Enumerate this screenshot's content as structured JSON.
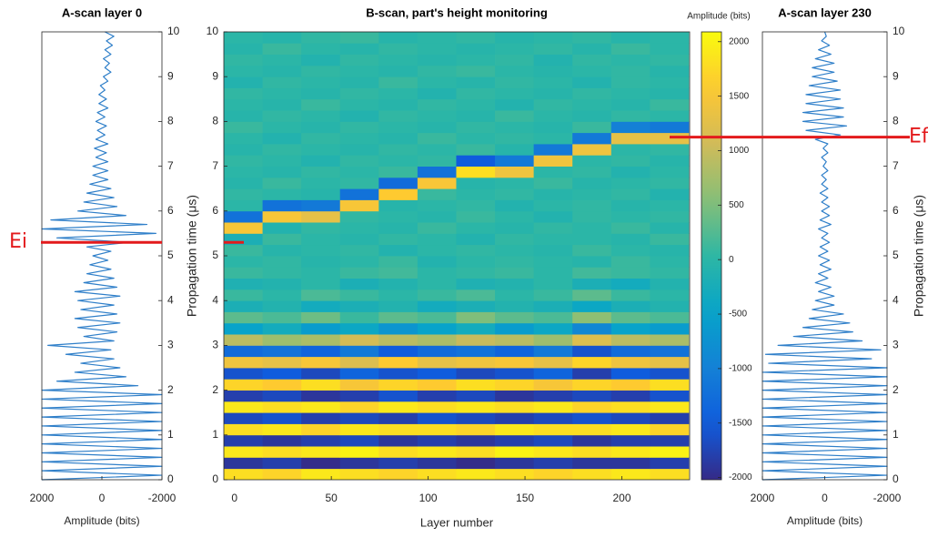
{
  "chart_data": [
    {
      "type": "line",
      "title": "A-scan layer 0",
      "xlabel": "Amplitude (bits)",
      "color": "#2f7fc9",
      "xlim": [
        2000,
        -2000
      ],
      "xticks": [
        2000,
        0,
        -2000
      ],
      "ylim": [
        0,
        10
      ],
      "yticks": [
        0,
        1,
        2,
        3,
        4,
        5,
        6,
        7,
        8,
        9,
        10
      ],
      "y": [
        0,
        0.1,
        0.2,
        0.3,
        0.4,
        0.5,
        0.6,
        0.7,
        0.8,
        0.9,
        1,
        1.1,
        1.2,
        1.3,
        1.4,
        1.5,
        1.6,
        1.7,
        1.8,
        1.9,
        2,
        2.1,
        2.2,
        2.3,
        2.4,
        2.5,
        2.6,
        2.7,
        2.8,
        2.9,
        3,
        3.1,
        3.2,
        3.3,
        3.4,
        3.5,
        3.6,
        3.7,
        3.8,
        3.9,
        4,
        4.1,
        4.2,
        4.3,
        4.4,
        4.5,
        4.6,
        4.7,
        4.8,
        4.9,
        5,
        5.1,
        5.2,
        5.3,
        5.4,
        5.5,
        5.6,
        5.7,
        5.8,
        5.9,
        6,
        6.1,
        6.2,
        6.3,
        6.4,
        6.5,
        6.6,
        6.7,
        6.8,
        6.9,
        7,
        7.1,
        7.2,
        7.3,
        7.4,
        7.5,
        7.6,
        7.7,
        7.8,
        7.9,
        8,
        8.1,
        8.2,
        8.3,
        8.4,
        8.5,
        8.6,
        8.7,
        8.8,
        8.9,
        9,
        9.1,
        9.2,
        9.3,
        9.4,
        9.5,
        9.6,
        9.7,
        9.8,
        9.9,
        10
      ],
      "values": [
        2000,
        -2000,
        2000,
        -2000,
        2000,
        -2000,
        2000,
        -2000,
        2000,
        -2000,
        2000,
        -2000,
        2000,
        -2000,
        2000,
        -2000,
        2000,
        -2000,
        2000,
        -2000,
        2000,
        -1200,
        1500,
        -800,
        900,
        -600,
        700,
        -400,
        1200,
        -300,
        1800,
        -400,
        600,
        -500,
        800,
        -600,
        900,
        -500,
        700,
        -400,
        800,
        -600,
        900,
        -500,
        600,
        -400,
        500,
        -300,
        400,
        -200,
        300,
        -300,
        500,
        -900,
        1500,
        -1800,
        2000,
        -1500,
        1700,
        -800,
        800,
        -500,
        600,
        -400,
        500,
        -300,
        400,
        -200,
        300,
        -200,
        300,
        -200,
        200,
        -150,
        250,
        -200,
        200,
        -100,
        150,
        -150,
        200,
        -100,
        150,
        -200,
        100,
        -150,
        100,
        -100,
        50,
        -200,
        -50,
        -300,
        -100,
        -250,
        -50,
        -300,
        -100,
        -350,
        -150,
        -400,
        -100
      ],
      "annotation": {
        "text": "Ei",
        "y": 5.3,
        "side": "left",
        "color": "#e31a1c"
      }
    },
    {
      "type": "heatmap",
      "title": "B-scan, part's height monitoring",
      "xlabel": "Layer number",
      "ylabel": "Propagation time (μs)",
      "xlim": [
        -5.5,
        235
      ],
      "xticks": [
        0,
        50,
        100,
        150,
        200
      ],
      "ylim": [
        0,
        10
      ],
      "yticks": [
        0,
        1,
        2,
        3,
        4,
        5,
        6,
        7,
        8,
        9,
        10
      ],
      "colormap": "parula",
      "clabel": "Amplitude (bits)",
      "clim": [
        -2020,
        2090
      ],
      "cticks": [
        -2000,
        -1500,
        -1000,
        -500,
        0,
        500,
        1000,
        1500,
        2000
      ],
      "markers": [
        {
          "y": 5.3,
          "side": "left",
          "color": "#e31a1c"
        },
        {
          "y": 7.65,
          "side": "right",
          "color": "#e31a1c"
        }
      ],
      "x": [
        4.5,
        24.5,
        44.5,
        64.5,
        84.5,
        104.5,
        124.5,
        144.5,
        164.5,
        184.5,
        204.5,
        224.5
      ],
      "y": [
        0.125,
        0.375,
        0.625,
        0.875,
        1.125,
        1.375,
        1.625,
        1.875,
        2.125,
        2.375,
        2.625,
        2.875,
        3.125,
        3.375,
        3.625,
        3.875,
        4.125,
        4.375,
        4.625,
        4.875,
        5.125,
        5.375,
        5.625,
        5.875,
        6.125,
        6.375,
        6.625,
        6.875,
        7.125,
        7.375,
        7.625,
        7.875,
        8.125,
        8.375,
        8.625,
        8.875,
        9.125,
        9.375,
        9.625,
        9.875
      ],
      "values": [
        [
          1800,
          1700,
          1900,
          1800,
          1700,
          1800,
          1900,
          1800,
          1700,
          1800,
          1900,
          1800
        ],
        [
          -1900,
          -1800,
          -2000,
          -1900,
          -1800,
          -1900,
          -2000,
          -1900,
          -1800,
          -1900,
          -1900,
          -1800
        ],
        [
          1900,
          1800,
          1900,
          2000,
          1800,
          1900,
          1800,
          2000,
          1900,
          1800,
          1900,
          2000
        ],
        [
          -1800,
          -1900,
          -1800,
          -1700,
          -1900,
          -1800,
          -1900,
          -1800,
          -1700,
          -1900,
          -1800,
          -1800
        ],
        [
          1800,
          1900,
          1700,
          1900,
          1800,
          1800,
          1700,
          1900,
          1800,
          1800,
          1900,
          1700
        ],
        [
          -1700,
          -1600,
          -1800,
          -1700,
          -1800,
          -1600,
          -1700,
          -1800,
          -1700,
          -1600,
          -1700,
          -1800
        ],
        [
          1900,
          1800,
          1900,
          1700,
          1900,
          1800,
          1900,
          1800,
          1900,
          1700,
          1800,
          1900
        ],
        [
          -1800,
          -1700,
          -1900,
          -1800,
          -1600,
          -1800,
          -1700,
          -1900,
          -1800,
          -1700,
          -1800,
          -1600
        ],
        [
          1700,
          1600,
          1800,
          1500,
          1700,
          1600,
          1800,
          1700,
          1500,
          1700,
          1600,
          1800
        ],
        [
          -1600,
          -1500,
          -1700,
          -1400,
          -1600,
          -1500,
          -1700,
          -1600,
          -1400,
          -1800,
          -1500,
          -1600
        ],
        [
          1400,
          1300,
          1500,
          1200,
          1600,
          1300,
          1400,
          1500,
          1300,
          1700,
          1400,
          1300
        ],
        [
          -1300,
          -1200,
          -1400,
          -1100,
          -1500,
          -1300,
          -1200,
          -1400,
          -1100,
          -1600,
          -1300,
          -1200
        ],
        [
          900,
          700,
          800,
          1100,
          900,
          800,
          1000,
          900,
          700,
          1200,
          900,
          800
        ],
        [
          -500,
          -300,
          -600,
          -400,
          -700,
          -500,
          -300,
          -600,
          -400,
          -900,
          -500,
          -600
        ],
        [
          300,
          200,
          400,
          100,
          300,
          200,
          500,
          300,
          200,
          600,
          300,
          200
        ],
        [
          -200,
          -100,
          -300,
          -200,
          -100,
          -300,
          -200,
          -100,
          -200,
          -400,
          -200,
          -100
        ],
        [
          100,
          0,
          200,
          100,
          0,
          100,
          200,
          0,
          100,
          300,
          100,
          0
        ],
        [
          -150,
          -100,
          0,
          -200,
          -100,
          0,
          -150,
          -100,
          0,
          -200,
          -300,
          -100
        ],
        [
          100,
          50,
          0,
          100,
          150,
          0,
          50,
          100,
          0,
          150,
          100,
          50
        ],
        [
          0,
          50,
          -50,
          0,
          100,
          -100,
          0,
          50,
          0,
          -50,
          100,
          0
        ],
        [
          100,
          -50,
          0,
          50,
          -100,
          0,
          50,
          0,
          -50,
          100,
          0,
          -50
        ],
        [
          -200,
          100,
          0,
          -50,
          50,
          0,
          -100,
          50,
          0,
          0,
          -50,
          100
        ],
        [
          1500,
          -100,
          50,
          0,
          -50,
          100,
          0,
          -50,
          50,
          0,
          100,
          -50
        ],
        [
          -1200,
          1500,
          1300,
          50,
          0,
          -50,
          100,
          0,
          -100,
          50,
          0,
          50
        ],
        [
          0,
          -1200,
          -1100,
          1500,
          -50,
          0,
          50,
          -100,
          0,
          50,
          -50,
          0
        ],
        [
          50,
          0,
          -50,
          -1200,
          1600,
          100,
          0,
          50,
          -50,
          0,
          50,
          -100
        ],
        [
          -50,
          100,
          0,
          50,
          -1300,
          1500,
          -50,
          0,
          100,
          -50,
          0,
          50
        ],
        [
          0,
          -50,
          50,
          0,
          100,
          -1200,
          1800,
          1400,
          0,
          50,
          -100,
          0
        ],
        [
          50,
          0,
          -100,
          50,
          0,
          50,
          -1500,
          -1100,
          1400,
          0,
          50,
          -50
        ],
        [
          -50,
          50,
          0,
          -50,
          50,
          0,
          100,
          -50,
          -1100,
          1400,
          0,
          50
        ],
        [
          0,
          -100,
          50,
          0,
          -50,
          100,
          0,
          50,
          0,
          -1100,
          1300,
          1300
        ],
        [
          100,
          0,
          -50,
          50,
          0,
          -50,
          50,
          0,
          -50,
          100,
          -1000,
          -1100
        ],
        [
          -50,
          50,
          0,
          -100,
          50,
          0,
          -50,
          100,
          0,
          -50,
          50,
          0
        ],
        [
          0,
          -50,
          100,
          0,
          -50,
          50,
          0,
          -100,
          50,
          0,
          -50,
          100
        ],
        [
          50,
          0,
          -50,
          50,
          0,
          -100,
          50,
          0,
          -50,
          50,
          0,
          -50
        ],
        [
          -100,
          50,
          0,
          -50,
          100,
          0,
          -50,
          50,
          0,
          -100,
          50,
          0
        ],
        [
          0,
          -50,
          50,
          0,
          -50,
          50,
          100,
          0,
          -50,
          0,
          50,
          -50
        ],
        [
          50,
          0,
          -100,
          50,
          0,
          -50,
          0,
          50,
          -100,
          50,
          0,
          50
        ],
        [
          -50,
          100,
          0,
          -50,
          50,
          0,
          -50,
          0,
          50,
          -50,
          100,
          0
        ],
        [
          0,
          -50,
          50,
          100,
          -50,
          0,
          50,
          -50,
          0,
          50,
          -50,
          0
        ]
      ]
    },
    {
      "type": "line",
      "title": "A-scan layer 230",
      "xlabel": "Amplitude (bits)",
      "ylabel": "Propagation time (μs)",
      "color": "#2f7fc9",
      "xlim": [
        2000,
        -2000
      ],
      "xticks": [
        2000,
        0,
        -2000
      ],
      "ylim": [
        0,
        10
      ],
      "yticks": [
        0,
        1,
        2,
        3,
        4,
        5,
        6,
        7,
        8,
        9,
        10
      ],
      "y": [
        0,
        0.1,
        0.2,
        0.3,
        0.4,
        0.5,
        0.6,
        0.7,
        0.8,
        0.9,
        1,
        1.1,
        1.2,
        1.3,
        1.4,
        1.5,
        1.6,
        1.7,
        1.8,
        1.9,
        2,
        2.1,
        2.2,
        2.3,
        2.4,
        2.5,
        2.6,
        2.7,
        2.8,
        2.9,
        3,
        3.1,
        3.2,
        3.3,
        3.4,
        3.5,
        3.6,
        3.7,
        3.8,
        3.9,
        4,
        4.1,
        4.2,
        4.3,
        4.4,
        4.5,
        4.6,
        4.7,
        4.8,
        4.9,
        5,
        5.1,
        5.2,
        5.3,
        5.4,
        5.5,
        5.6,
        5.7,
        5.8,
        5.9,
        6,
        6.1,
        6.2,
        6.3,
        6.4,
        6.5,
        6.6,
        6.7,
        6.8,
        6.9,
        7,
        7.1,
        7.2,
        7.3,
        7.4,
        7.5,
        7.6,
        7.7,
        7.8,
        7.9,
        8,
        8.1,
        8.2,
        8.3,
        8.4,
        8.5,
        8.6,
        8.7,
        8.8,
        8.9,
        9,
        9.1,
        9.2,
        9.3,
        9.4,
        9.5,
        9.6,
        9.7,
        9.8,
        9.9,
        10
      ],
      "values": [
        2000,
        -2000,
        2000,
        -2000,
        2000,
        -2000,
        2000,
        -2000,
        2000,
        -2000,
        2000,
        -2000,
        2000,
        -2000,
        2000,
        -2000,
        2000,
        -2000,
        2000,
        -2000,
        2000,
        -2000,
        2000,
        -2000,
        2000,
        -2000,
        1800,
        -1500,
        1900,
        -1800,
        1500,
        -1200,
        1000,
        -900,
        700,
        -800,
        500,
        -600,
        400,
        -300,
        300,
        -300,
        200,
        -200,
        300,
        -100,
        200,
        -200,
        150,
        -150,
        200,
        -100,
        150,
        -150,
        100,
        -100,
        200,
        -200,
        150,
        -150,
        100,
        -150,
        100,
        -100,
        150,
        -100,
        100,
        -50,
        100,
        -100,
        50,
        -50,
        100,
        -100,
        50,
        -100,
        300,
        -500,
        600,
        -700,
        700,
        -600,
        700,
        -600,
        600,
        -500,
        600,
        -500,
        500,
        -400,
        400,
        -300,
        400,
        -300,
        300,
        -200,
        200,
        -150,
        100,
        -50,
        0
      ],
      "annotation": {
        "text": "Ef",
        "y": 7.65,
        "side": "right",
        "color": "#e31a1c"
      }
    }
  ]
}
